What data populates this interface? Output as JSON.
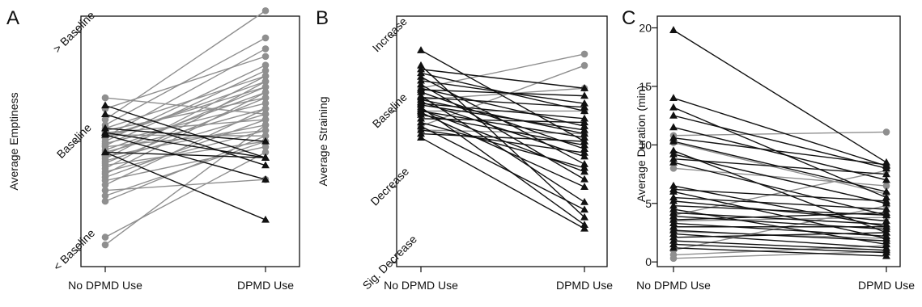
{
  "colors": {
    "black": "#111111",
    "gray": "#8f8f8f"
  },
  "chart_data": [
    {
      "panel": "A",
      "type": "line",
      "ylabel": "Average Emptiness",
      "categories": [
        "No DPMD Use",
        "DPMD Use"
      ],
      "yticks": [
        {
          "value": -1,
          "label": "< Baseline"
        },
        {
          "value": 0,
          "label": "Baseline"
        },
        {
          "value": 1,
          "label": "> Baseline"
        }
      ],
      "ylim": [
        -1.15,
        1.15
      ],
      "series": [
        {
          "color": "gray",
          "marker": "circle",
          "values": [
            0.4,
            0.25
          ]
        },
        {
          "color": "black",
          "marker": "triangle",
          "values": [
            0.33,
            -0.15
          ]
        },
        {
          "color": "black",
          "marker": "triangle",
          "values": [
            0.25,
            -0.22
          ]
        },
        {
          "color": "black",
          "marker": "triangle",
          "values": [
            0.12,
            0.0
          ]
        },
        {
          "color": "black",
          "marker": "triangle",
          "values": [
            0.08,
            -0.15
          ]
        },
        {
          "color": "black",
          "marker": "triangle",
          "values": [
            0.06,
            -0.35
          ]
        },
        {
          "color": "black",
          "marker": "triangle",
          "values": [
            -0.1,
            -0.72
          ]
        },
        {
          "color": "black",
          "marker": "triangle",
          "values": [
            -0.1,
            -0.15
          ]
        },
        {
          "color": "gray",
          "marker": "circle",
          "values": [
            0.3,
            0.78
          ]
        },
        {
          "color": "gray",
          "marker": "circle",
          "values": [
            0.2,
            1.2
          ]
        },
        {
          "color": "gray",
          "marker": "circle",
          "values": [
            0.15,
            0.95
          ]
        },
        {
          "color": "gray",
          "marker": "circle",
          "values": [
            0.12,
            0.6
          ]
        },
        {
          "color": "gray",
          "marker": "circle",
          "values": [
            0.1,
            0.4
          ]
        },
        {
          "color": "gray",
          "marker": "circle",
          "values": [
            0.08,
            0.2
          ]
        },
        {
          "color": "gray",
          "marker": "circle",
          "values": [
            0.06,
            0.05
          ]
        },
        {
          "color": "gray",
          "marker": "circle",
          "values": [
            0.05,
            0.5
          ]
        },
        {
          "color": "gray",
          "marker": "circle",
          "values": [
            0.04,
            0.85
          ]
        },
        {
          "color": "gray",
          "marker": "circle",
          "values": [
            0.03,
            0.55
          ]
        },
        {
          "color": "gray",
          "marker": "circle",
          "values": [
            0.0,
            0.7
          ]
        },
        {
          "color": "gray",
          "marker": "circle",
          "values": [
            -0.02,
            0.35
          ]
        },
        {
          "color": "gray",
          "marker": "circle",
          "values": [
            -0.04,
            0.65
          ]
        },
        {
          "color": "gray",
          "marker": "circle",
          "values": [
            -0.05,
            0.1
          ]
        },
        {
          "color": "gray",
          "marker": "circle",
          "values": [
            -0.08,
            0.45
          ]
        },
        {
          "color": "gray",
          "marker": "circle",
          "values": [
            -0.1,
            0.3
          ]
        },
        {
          "color": "gray",
          "marker": "circle",
          "values": [
            -0.12,
            0.5
          ]
        },
        {
          "color": "gray",
          "marker": "circle",
          "values": [
            -0.14,
            0.15
          ]
        },
        {
          "color": "gray",
          "marker": "circle",
          "values": [
            -0.16,
            0.6
          ]
        },
        {
          "color": "gray",
          "marker": "circle",
          "values": [
            -0.18,
            0.25
          ]
        },
        {
          "color": "gray",
          "marker": "circle",
          "values": [
            -0.2,
            0.4
          ]
        },
        {
          "color": "gray",
          "marker": "circle",
          "values": [
            -0.22,
            0.0
          ]
        },
        {
          "color": "gray",
          "marker": "circle",
          "values": [
            -0.25,
            0.55
          ]
        },
        {
          "color": "gray",
          "marker": "circle",
          "values": [
            -0.28,
            0.1
          ]
        },
        {
          "color": "gray",
          "marker": "circle",
          "values": [
            -0.3,
            0.45
          ]
        },
        {
          "color": "gray",
          "marker": "circle",
          "values": [
            -0.33,
            0.2
          ]
        },
        {
          "color": "gray",
          "marker": "circle",
          "values": [
            -0.36,
            -0.05
          ]
        },
        {
          "color": "gray",
          "marker": "circle",
          "values": [
            -0.4,
            0.3
          ]
        },
        {
          "color": "gray",
          "marker": "circle",
          "values": [
            -0.45,
            -0.35
          ]
        },
        {
          "color": "gray",
          "marker": "circle",
          "values": [
            -0.5,
            0.0
          ]
        },
        {
          "color": "gray",
          "marker": "circle",
          "values": [
            -0.55,
            0.05
          ]
        },
        {
          "color": "gray",
          "marker": "circle",
          "values": [
            -0.88,
            -0.1
          ]
        },
        {
          "color": "gray",
          "marker": "circle",
          "values": [
            -0.95,
            0.15
          ]
        }
      ]
    },
    {
      "panel": "B",
      "type": "line",
      "ylabel": "Average Straining",
      "categories": [
        "No DPMD Use",
        "DPMD Use"
      ],
      "yticks": [
        {
          "value": -2,
          "label": "Sig. Decrease"
        },
        {
          "value": -1,
          "label": "Decrease"
        },
        {
          "value": 0,
          "label": "Baseline"
        },
        {
          "value": 1,
          "label": "Increase"
        }
      ],
      "ylim": [
        -2.05,
        1.25
      ],
      "series": [
        {
          "color": "black",
          "marker": "triangle",
          "values": [
            0.8,
            -0.4
          ]
        },
        {
          "color": "black",
          "marker": "triangle",
          "values": [
            0.6,
            -1.4
          ]
        },
        {
          "color": "black",
          "marker": "triangle",
          "values": [
            0.55,
            0.3
          ]
        },
        {
          "color": "black",
          "marker": "triangle",
          "values": [
            0.5,
            0.0
          ]
        },
        {
          "color": "black",
          "marker": "triangle",
          "values": [
            0.45,
            -0.7
          ]
        },
        {
          "color": "black",
          "marker": "triangle",
          "values": [
            0.4,
            0.1
          ]
        },
        {
          "color": "black",
          "marker": "triangle",
          "values": [
            0.35,
            -0.9
          ]
        },
        {
          "color": "black",
          "marker": "triangle",
          "values": [
            0.3,
            -0.2
          ]
        },
        {
          "color": "black",
          "marker": "triangle",
          "values": [
            0.28,
            0.2
          ]
        },
        {
          "color": "black",
          "marker": "triangle",
          "values": [
            0.25,
            -0.5
          ]
        },
        {
          "color": "black",
          "marker": "triangle",
          "values": [
            0.2,
            -1.2
          ]
        },
        {
          "color": "black",
          "marker": "triangle",
          "values": [
            0.18,
            0.05
          ]
        },
        {
          "color": "black",
          "marker": "triangle",
          "values": [
            0.15,
            -0.3
          ]
        },
        {
          "color": "black",
          "marker": "triangle",
          "values": [
            0.12,
            -0.6
          ]
        },
        {
          "color": "black",
          "marker": "triangle",
          "values": [
            0.1,
            -0.1
          ]
        },
        {
          "color": "black",
          "marker": "triangle",
          "values": [
            0.08,
            -0.25
          ]
        },
        {
          "color": "black",
          "marker": "triangle",
          "values": [
            0.05,
            -1.5
          ]
        },
        {
          "color": "black",
          "marker": "triangle",
          "values": [
            0.02,
            -0.8
          ]
        },
        {
          "color": "black",
          "marker": "triangle",
          "values": [
            0.0,
            -0.35
          ]
        },
        {
          "color": "black",
          "marker": "triangle",
          "values": [
            -0.02,
            -1.0
          ]
        },
        {
          "color": "black",
          "marker": "triangle",
          "values": [
            -0.05,
            -0.45
          ]
        },
        {
          "color": "black",
          "marker": "triangle",
          "values": [
            -0.1,
            -0.15
          ]
        },
        {
          "color": "black",
          "marker": "triangle",
          "values": [
            -0.15,
            -0.75
          ]
        },
        {
          "color": "black",
          "marker": "triangle",
          "values": [
            -0.2,
            -1.3
          ]
        },
        {
          "color": "black",
          "marker": "triangle",
          "values": [
            -0.25,
            -0.55
          ]
        },
        {
          "color": "black",
          "marker": "triangle",
          "values": [
            -0.3,
            -0.4
          ]
        },
        {
          "color": "black",
          "marker": "triangle",
          "values": [
            -0.35,
            -1.55
          ]
        },
        {
          "color": "gray",
          "marker": "circle",
          "values": [
            0.3,
            0.75
          ]
        },
        {
          "color": "gray",
          "marker": "circle",
          "values": [
            0.15,
            0.3
          ]
        },
        {
          "color": "gray",
          "marker": "circle",
          "values": [
            0.0,
            0.0
          ]
        },
        {
          "color": "gray",
          "marker": "circle",
          "values": [
            -0.2,
            0.6
          ]
        },
        {
          "color": "gray",
          "marker": "circle",
          "values": [
            -0.25,
            -0.3
          ]
        }
      ]
    },
    {
      "panel": "C",
      "type": "line",
      "ylabel": "Average Duration (min)",
      "categories": [
        "No DPMD Use",
        "DPMD Use"
      ],
      "yticks": [
        {
          "value": 0,
          "label": "0"
        },
        {
          "value": 5,
          "label": "5"
        },
        {
          "value": 10,
          "label": "10"
        },
        {
          "value": 15,
          "label": "15"
        },
        {
          "value": 20,
          "label": "20"
        }
      ],
      "ylim": [
        -0.4,
        21
      ],
      "series": [
        {
          "color": "black",
          "marker": "triangle",
          "values": [
            19.8,
            8.5
          ]
        },
        {
          "color": "black",
          "marker": "triangle",
          "values": [
            14.0,
            8.2
          ]
        },
        {
          "color": "black",
          "marker": "triangle",
          "values": [
            13.2,
            5.5
          ]
        },
        {
          "color": "black",
          "marker": "triangle",
          "values": [
            12.5,
            8.0
          ]
        },
        {
          "color": "black",
          "marker": "triangle",
          "values": [
            11.5,
            7.0
          ]
        },
        {
          "color": "black",
          "marker": "triangle",
          "values": [
            10.6,
            8.3
          ]
        },
        {
          "color": "black",
          "marker": "triangle",
          "values": [
            10.3,
            6.0
          ]
        },
        {
          "color": "black",
          "marker": "triangle",
          "values": [
            9.5,
            2.5
          ]
        },
        {
          "color": "black",
          "marker": "triangle",
          "values": [
            9.2,
            5.0
          ]
        },
        {
          "color": "black",
          "marker": "triangle",
          "values": [
            8.8,
            7.5
          ]
        },
        {
          "color": "black",
          "marker": "triangle",
          "values": [
            8.5,
            4.0
          ]
        },
        {
          "color": "black",
          "marker": "triangle",
          "values": [
            6.5,
            3.0
          ]
        },
        {
          "color": "black",
          "marker": "triangle",
          "values": [
            6.2,
            5.2
          ]
        },
        {
          "color": "black",
          "marker": "triangle",
          "values": [
            6.0,
            2.0
          ]
        },
        {
          "color": "black",
          "marker": "triangle",
          "values": [
            5.5,
            4.5
          ]
        },
        {
          "color": "black",
          "marker": "triangle",
          "values": [
            5.2,
            3.5
          ]
        },
        {
          "color": "black",
          "marker": "triangle",
          "values": [
            4.8,
            4.0
          ]
        },
        {
          "color": "black",
          "marker": "triangle",
          "values": [
            4.5,
            1.5
          ]
        },
        {
          "color": "black",
          "marker": "triangle",
          "values": [
            4.2,
            3.2
          ]
        },
        {
          "color": "black",
          "marker": "triangle",
          "values": [
            3.9,
            2.8
          ]
        },
        {
          "color": "black",
          "marker": "triangle",
          "values": [
            3.6,
            4.2
          ]
        },
        {
          "color": "black",
          "marker": "triangle",
          "values": [
            3.3,
            2.2
          ]
        },
        {
          "color": "black",
          "marker": "triangle",
          "values": [
            3.0,
            3.0
          ]
        },
        {
          "color": "black",
          "marker": "triangle",
          "values": [
            2.7,
            1.8
          ]
        },
        {
          "color": "black",
          "marker": "triangle",
          "values": [
            2.4,
            1.2
          ]
        },
        {
          "color": "black",
          "marker": "triangle",
          "values": [
            2.1,
            2.5
          ]
        },
        {
          "color": "black",
          "marker": "triangle",
          "values": [
            1.8,
            1.0
          ]
        },
        {
          "color": "black",
          "marker": "triangle",
          "values": [
            1.5,
            0.8
          ]
        },
        {
          "color": "black",
          "marker": "triangle",
          "values": [
            1.2,
            0.5
          ]
        },
        {
          "color": "gray",
          "marker": "circle",
          "values": [
            10.8,
            11.1
          ]
        },
        {
          "color": "gray",
          "marker": "circle",
          "values": [
            10.2,
            5.8
          ]
        },
        {
          "color": "gray",
          "marker": "circle",
          "values": [
            8.0,
            6.5
          ]
        },
        {
          "color": "gray",
          "marker": "circle",
          "values": [
            4.0,
            7.8
          ]
        },
        {
          "color": "gray",
          "marker": "circle",
          "values": [
            3.5,
            3.8
          ]
        },
        {
          "color": "gray",
          "marker": "circle",
          "values": [
            2.6,
            2.0
          ]
        },
        {
          "color": "gray",
          "marker": "circle",
          "values": [
            1.0,
            4.8
          ]
        },
        {
          "color": "gray",
          "marker": "circle",
          "values": [
            0.6,
            1.4
          ]
        },
        {
          "color": "gray",
          "marker": "circle",
          "values": [
            0.3,
            0.9
          ]
        }
      ]
    }
  ]
}
